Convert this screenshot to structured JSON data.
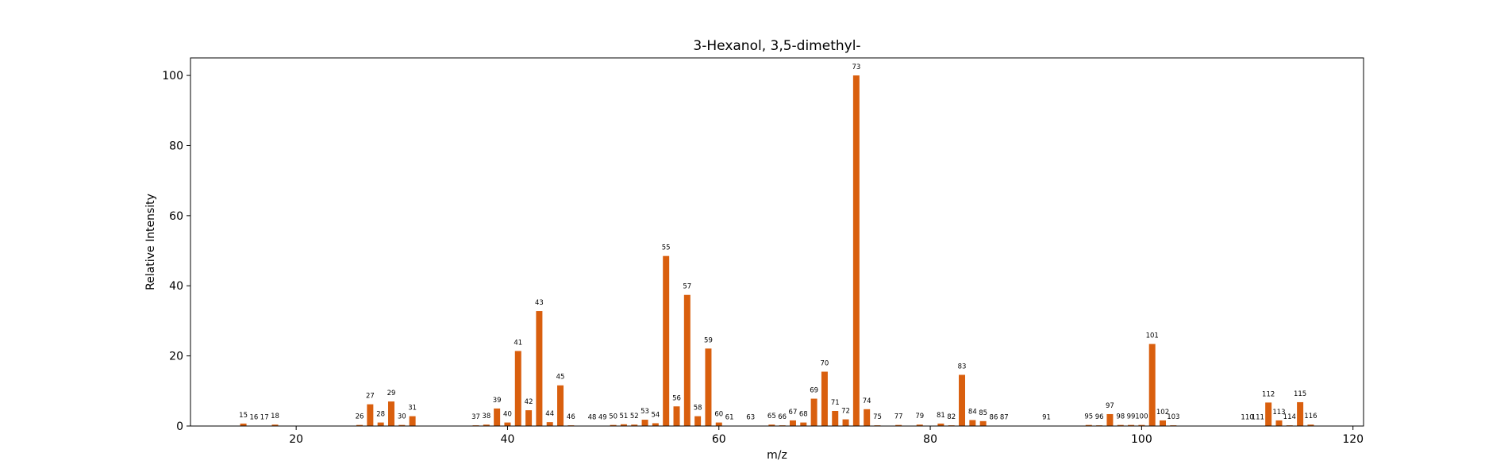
{
  "chart_data": {
    "type": "bar",
    "title": "3-Hexanol, 3,5-dimethyl-",
    "xlabel": "m/z",
    "ylabel": "Relative Intensity",
    "xlim": [
      10,
      121
    ],
    "ylim": [
      0,
      105
    ],
    "xticks": [
      20,
      40,
      60,
      80,
      100,
      120
    ],
    "yticks": [
      0,
      20,
      40,
      60,
      80,
      100
    ],
    "grid": false,
    "bar_color": "#d95f0e",
    "x": [
      15,
      16,
      17,
      18,
      26,
      27,
      28,
      29,
      30,
      31,
      37,
      38,
      39,
      40,
      41,
      42,
      43,
      44,
      45,
      46,
      48,
      49,
      50,
      51,
      52,
      53,
      54,
      55,
      56,
      57,
      58,
      59,
      60,
      61,
      63,
      65,
      66,
      67,
      68,
      69,
      70,
      71,
      72,
      73,
      74,
      75,
      77,
      79,
      81,
      82,
      83,
      84,
      85,
      86,
      87,
      91,
      95,
      96,
      97,
      98,
      99,
      100,
      101,
      102,
      103,
      110,
      111,
      112,
      113,
      114,
      115,
      116
    ],
    "values": [
      0.7,
      0.1,
      0.1,
      0.4,
      0.3,
      6.2,
      1.0,
      7.0,
      0.3,
      2.8,
      0.2,
      0.4,
      5.0,
      1.0,
      21.4,
      4.5,
      32.8,
      1.1,
      11.6,
      0.2,
      0.1,
      0.1,
      0.3,
      0.5,
      0.4,
      1.8,
      0.8,
      48.5,
      5.6,
      37.4,
      2.8,
      22.1,
      1.0,
      0.1,
      0.1,
      0.4,
      0.2,
      1.6,
      1.0,
      7.8,
      15.5,
      4.3,
      1.9,
      100.0,
      4.8,
      0.2,
      0.3,
      0.4,
      0.7,
      0.2,
      14.6,
      1.7,
      1.4,
      0.1,
      0.1,
      0.1,
      0.3,
      0.2,
      3.4,
      0.3,
      0.3,
      0.3,
      23.4,
      1.6,
      0.2,
      0.1,
      0.1,
      6.7,
      1.6,
      0.2,
      6.8,
      0.4
    ],
    "labels": [
      "15",
      "16",
      "17",
      "18",
      "26",
      "27",
      "28",
      "29",
      "30",
      "31",
      "37",
      "38",
      "39",
      "40",
      "41",
      "42",
      "43",
      "44",
      "45",
      "46",
      "48",
      "49",
      "50",
      "51",
      "52",
      "53",
      "54",
      "55",
      "56",
      "57",
      "58",
      "59",
      "60",
      "61",
      "63",
      "65",
      "66",
      "67",
      "68",
      "69",
      "70",
      "71",
      "72",
      "73",
      "74",
      "75",
      "77",
      "79",
      "81",
      "82",
      "83",
      "84",
      "85",
      "86",
      "87",
      "91",
      "95",
      "96",
      "97",
      "98",
      "99",
      "100",
      "101",
      "102",
      "103",
      "110",
      "111",
      "112",
      "113",
      "114",
      "115",
      "116"
    ]
  }
}
